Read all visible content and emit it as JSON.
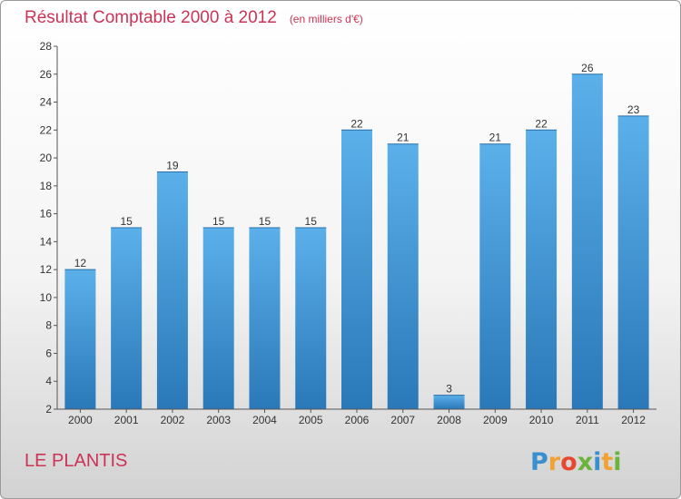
{
  "chart_data": {
    "type": "bar",
    "title": "Résultat Comptable 2000 à 2012",
    "subtitle": "(en milliers d'€)",
    "categories": [
      "2000",
      "2001",
      "2002",
      "2003",
      "2004",
      "2005",
      "2006",
      "2007",
      "2008",
      "2009",
      "2010",
      "2011",
      "2012"
    ],
    "values": [
      12,
      15,
      19,
      15,
      15,
      15,
      22,
      21,
      3,
      21,
      22,
      26,
      23
    ],
    "ylim": [
      2,
      28
    ],
    "yticks": [
      2,
      4,
      6,
      8,
      10,
      12,
      14,
      16,
      18,
      20,
      22,
      24,
      26,
      28
    ],
    "xlabel": "",
    "ylabel": "",
    "grid": false,
    "bar_color": "#3d8fd1"
  },
  "place_name": "LE PLANTIS",
  "logo": {
    "letters": [
      "P",
      "r",
      "o",
      "x",
      "i",
      "t",
      "i"
    ],
    "colors": [
      "#3a8fd0",
      "#f2a233",
      "#e8472f",
      "#6ab43e",
      "#3a8fd0",
      "#f2a233",
      "#6ab43e"
    ]
  }
}
